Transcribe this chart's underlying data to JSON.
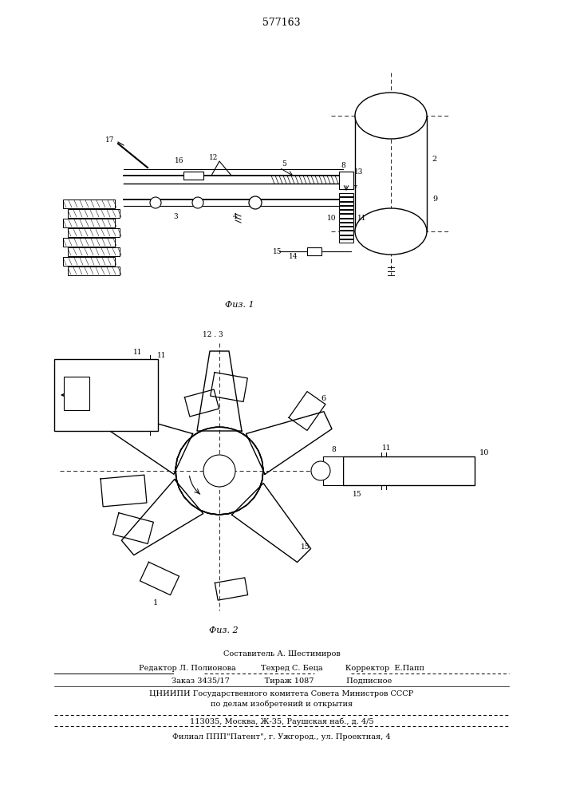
{
  "title": "577163",
  "background_color": "#ffffff",
  "line_color": "#000000",
  "fig1_caption": "Физ. 1",
  "fig2_caption": "Физ. 2",
  "footer": {
    "line1": "Составитель А. Шестимиров",
    "line2": "Редактор Л. Полионова          Техред С. Беца         Корректор  Е.Папп",
    "line3": "Заказ 3435/17              Тираж 1087             Подписное",
    "line4": "ЦНИИПИ Государственного комитета Совета Министров СССР",
    "line5": "по делам изобретений и открытия",
    "line6": "113035, Москва, Ж-35, Раушская наб., д. 4/5",
    "line7": "Филиал ППП\"Патент\", г. Ужгород., ул. Проектная, 4"
  }
}
